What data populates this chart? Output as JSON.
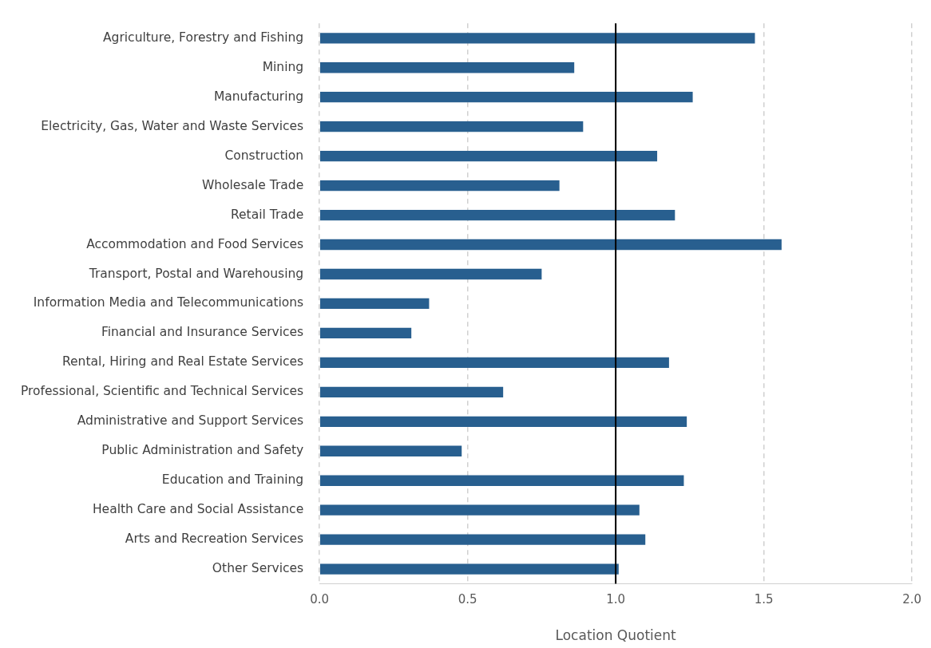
{
  "chart_data": {
    "type": "bar",
    "orientation": "horizontal",
    "xlabel": "Location Quotient",
    "categories": [
      "Agriculture, Forestry and Fishing",
      "Mining",
      "Manufacturing",
      "Electricity, Gas, Water and Waste Services",
      "Construction",
      "Wholesale Trade",
      "Retail Trade",
      "Accommodation and Food Services",
      "Transport, Postal and Warehousing",
      "Information Media and Telecommunications",
      "Financial and Insurance Services",
      "Rental, Hiring and Real Estate Services",
      "Professional, Scientific and Technical Services",
      "Administrative and Support Services",
      "Public Administration and Safety",
      "Education and Training",
      "Health Care and Social Assistance",
      "Arts and Recreation Services",
      "Other Services"
    ],
    "values": [
      1.47,
      0.86,
      1.26,
      0.89,
      1.14,
      0.81,
      1.2,
      1.56,
      0.75,
      0.37,
      0.31,
      1.18,
      0.62,
      1.24,
      0.48,
      1.23,
      1.08,
      1.1,
      1.01
    ],
    "color": "#285f8f",
    "xlim": [
      0,
      2
    ],
    "xticks": [
      {
        "value": 0,
        "label": "0.0"
      },
      {
        "value": 0.5,
        "label": "0.5"
      },
      {
        "value": 1,
        "label": "1.0"
      },
      {
        "value": 1.5,
        "label": "1.5"
      },
      {
        "value": 2,
        "label": "2.0"
      }
    ],
    "grid": "x",
    "ref_lines": [
      {
        "axis": "x",
        "value": 1,
        "color": "#000000"
      }
    ],
    "legend": false
  }
}
